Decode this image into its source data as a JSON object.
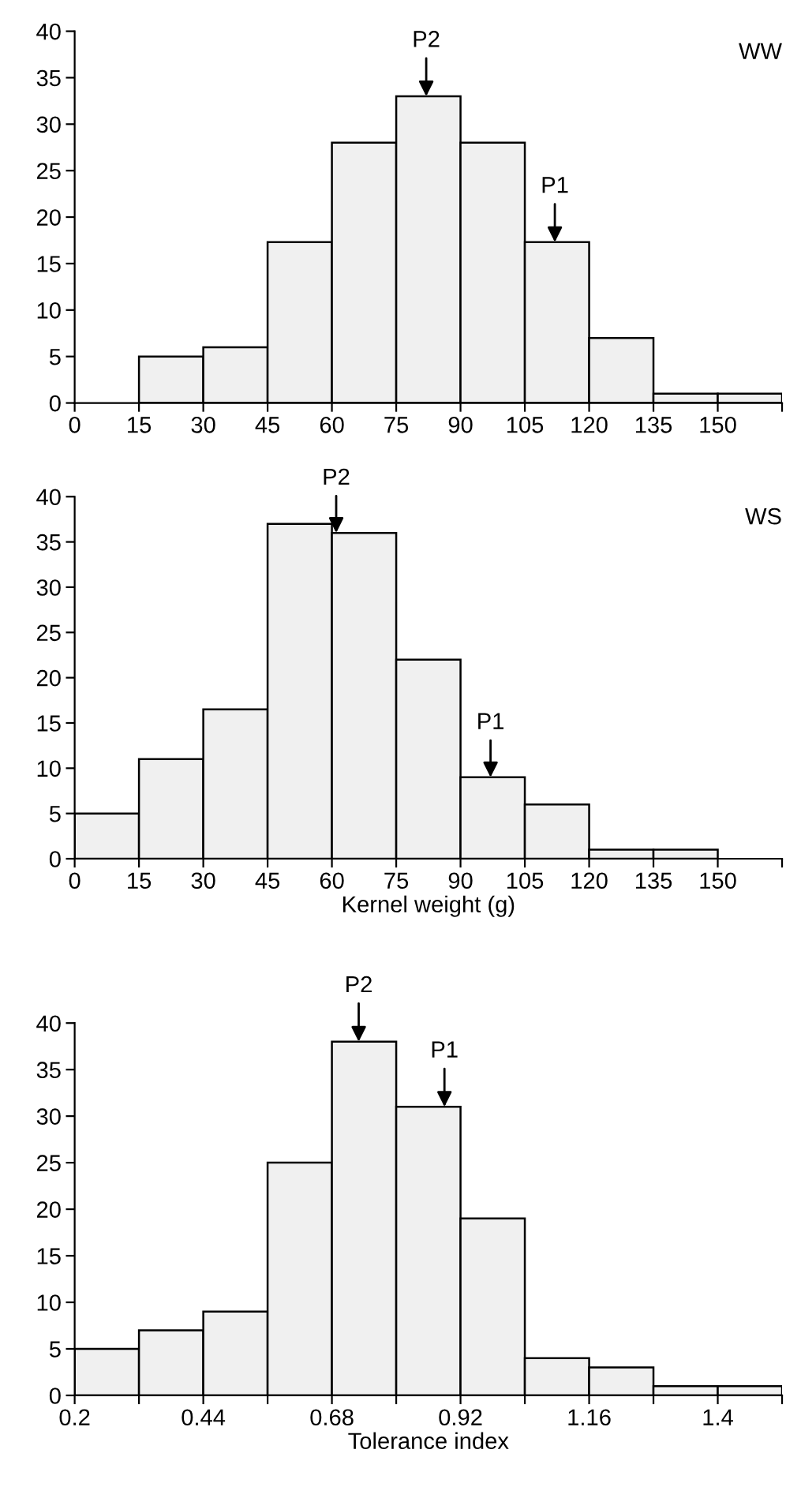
{
  "chart_data": [
    {
      "type": "histogram",
      "title": "WW",
      "bins": [
        15,
        30,
        45,
        60,
        75,
        90,
        105,
        120,
        135,
        150,
        165
      ],
      "values": [
        5,
        6,
        17.3,
        28,
        33,
        28,
        17.3,
        7,
        1,
        1
      ],
      "color": "#f0f0f0",
      "xlim": [
        0,
        165
      ],
      "ylim": [
        0,
        40
      ],
      "xticks": [
        0,
        15,
        30,
        45,
        60,
        75,
        90,
        105,
        120,
        135,
        150,
        {
          "value": 165,
          "label": null
        }
      ],
      "yticks": [
        0,
        5,
        10,
        15,
        20,
        25,
        30,
        35,
        40
      ],
      "annotations": [
        {
          "text": "P2",
          "x": 82,
          "y": 33
        },
        {
          "text": "P1",
          "x": 112,
          "y": 17.3
        }
      ]
    },
    {
      "type": "histogram",
      "title": "WS",
      "xlabel": "Kernel weight (g)",
      "bins": [
        0,
        15,
        30,
        45,
        60,
        75,
        90,
        105,
        120,
        135,
        150
      ],
      "values": [
        5,
        11,
        16.5,
        37,
        36,
        22,
        9,
        6,
        1,
        1
      ],
      "color": "#f0f0f0",
      "xlim": [
        0,
        165
      ],
      "ylim": [
        0,
        40
      ],
      "xticks": [
        0,
        15,
        30,
        45,
        60,
        75,
        90,
        105,
        120,
        135,
        150,
        {
          "value": 165,
          "label": null
        }
      ],
      "yticks": [
        0,
        5,
        10,
        15,
        20,
        25,
        30,
        35,
        40
      ],
      "annotations": [
        {
          "text": "P2",
          "x": 61,
          "y": 36
        },
        {
          "text": "P1",
          "x": 97,
          "y": 9
        }
      ]
    },
    {
      "type": "histogram",
      "xlabel": "Tolerance index",
      "bins": [
        0.2,
        0.32,
        0.44,
        0.56,
        0.68,
        0.8,
        0.92,
        1.04,
        1.16,
        1.28,
        1.4,
        1.52
      ],
      "values": [
        5,
        7,
        9,
        25,
        38,
        31,
        19,
        4,
        3,
        1,
        1
      ],
      "color": "#f0f0f0",
      "xlim": [
        0.2,
        1.52
      ],
      "ylim": [
        0,
        40
      ],
      "xticks": [
        0.2,
        {
          "value": 0.32,
          "label": null
        },
        0.44,
        {
          "value": 0.56,
          "label": null
        },
        0.68,
        {
          "value": 0.8,
          "label": null
        },
        0.92,
        {
          "value": 1.04,
          "label": null
        },
        1.16,
        {
          "value": 1.28,
          "label": null
        },
        1.4,
        {
          "value": 1.52,
          "label": null
        }
      ],
      "yticks": [
        0,
        5,
        10,
        15,
        20,
        25,
        30,
        35,
        40
      ],
      "annotations": [
        {
          "text": "P2",
          "x": 0.73,
          "y": 38
        },
        {
          "text": "P1",
          "x": 0.89,
          "y": 31
        }
      ]
    }
  ]
}
